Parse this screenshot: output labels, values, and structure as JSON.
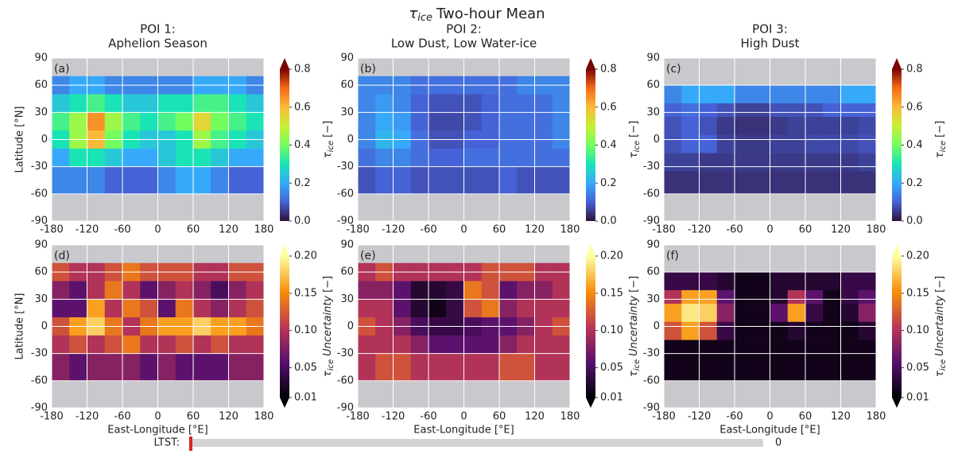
{
  "suptitle": {
    "symbol": "τ",
    "subscript": "ice",
    "text": "Two-hour Mean"
  },
  "slider": {
    "label": "LTST:",
    "value": 0
  },
  "chart_data": [
    {
      "type": "heatmap",
      "panel": "(a)",
      "title": [
        "POI 1:",
        "Aphelion Season"
      ],
      "ylabel": "Latitude [°N]",
      "colormap": "turbo",
      "cbar_label": {
        "symbol": "τ",
        "subscript": "ice",
        "text": "[−]"
      },
      "clim": [
        0,
        0.8
      ],
      "cticks": [
        {
          "value": 0,
          "label": "0.0"
        },
        0.2,
        0.4,
        0.6,
        0.8
      ],
      "extend": "max",
      "xlim": [
        -180,
        180
      ],
      "ylim": [
        -90,
        90
      ],
      "xticks": [
        -180,
        -120,
        -60,
        0,
        60,
        120,
        180
      ],
      "yticks": [
        -90,
        -60,
        -30,
        0,
        30,
        60,
        90
      ],
      "lon_edges": [
        -180,
        -150,
        -120,
        -90,
        -60,
        -30,
        0,
        30,
        60,
        90,
        120,
        150,
        180
      ],
      "lat_edges": [
        70,
        50,
        30,
        10,
        -10,
        -30,
        -60
      ],
      "z": [
        [
          0.15,
          0.2,
          0.2,
          0.15,
          0.15,
          0.15,
          0.15,
          0.15,
          0.2,
          0.2,
          0.2,
          0.15
        ],
        [
          0.25,
          0.3,
          0.35,
          0.3,
          0.25,
          0.25,
          0.3,
          0.3,
          0.35,
          0.35,
          0.3,
          0.25
        ],
        [
          0.35,
          0.45,
          0.65,
          0.45,
          0.35,
          0.3,
          0.35,
          0.4,
          0.55,
          0.4,
          0.35,
          0.3
        ],
        [
          0.3,
          0.45,
          0.6,
          0.4,
          0.3,
          0.25,
          0.25,
          0.3,
          0.45,
          0.35,
          0.3,
          0.25
        ],
        [
          0.2,
          0.3,
          0.3,
          0.25,
          0.2,
          0.2,
          0.25,
          0.3,
          0.3,
          0.25,
          0.2,
          0.2
        ],
        [
          0.15,
          0.15,
          0.15,
          0.1,
          0.1,
          0.1,
          0.15,
          0.2,
          0.2,
          0.15,
          0.1,
          0.1
        ]
      ]
    },
    {
      "type": "heatmap",
      "panel": "(b)",
      "title": [
        "POI 2:",
        "Low Dust, Low Water-ice"
      ],
      "colormap": "turbo",
      "cbar_label": {
        "symbol": "τ",
        "subscript": "ice",
        "text": "[−]"
      },
      "clim": [
        0,
        0.8
      ],
      "cticks": [
        {
          "value": 0,
          "label": "0.0"
        },
        0.2,
        0.4,
        0.6,
        0.8
      ],
      "extend": "max",
      "xlim": [
        -180,
        180
      ],
      "ylim": [
        -90,
        90
      ],
      "xticks": [
        -180,
        -120,
        -60,
        0,
        60,
        120,
        180
      ],
      "yticks": [
        -90,
        -60,
        -30,
        0,
        30,
        60,
        90
      ],
      "lon_edges": [
        -180,
        -150,
        -120,
        -90,
        -60,
        -30,
        0,
        30,
        60,
        90,
        120,
        150,
        180
      ],
      "lat_edges": [
        70,
        50,
        30,
        10,
        -10,
        -30,
        -60
      ],
      "z": [
        [
          0.15,
          0.15,
          0.15,
          0.12,
          0.12,
          0.12,
          0.12,
          0.12,
          0.12,
          0.15,
          0.15,
          0.15
        ],
        [
          0.15,
          0.18,
          0.15,
          0.1,
          0.08,
          0.08,
          0.08,
          0.1,
          0.12,
          0.12,
          0.12,
          0.15
        ],
        [
          0.15,
          0.2,
          0.18,
          0.1,
          0.07,
          0.07,
          0.08,
          0.1,
          0.12,
          0.12,
          0.12,
          0.15
        ],
        [
          0.15,
          0.22,
          0.2,
          0.12,
          0.08,
          0.08,
          0.1,
          0.1,
          0.12,
          0.12,
          0.12,
          0.15
        ],
        [
          0.12,
          0.15,
          0.15,
          0.12,
          0.1,
          0.1,
          0.12,
          0.12,
          0.12,
          0.12,
          0.12,
          0.12
        ],
        [
          0.08,
          0.1,
          0.1,
          0.08,
          0.08,
          0.08,
          0.08,
          0.08,
          0.1,
          0.08,
          0.08,
          0.08
        ]
      ]
    },
    {
      "type": "heatmap",
      "panel": "(c)",
      "title": [
        "POI 3:",
        "High Dust"
      ],
      "colormap": "turbo",
      "cbar_label": {
        "symbol": "τ",
        "subscript": "ice",
        "text": "[−]"
      },
      "clim": [
        0,
        0.8
      ],
      "cticks": [
        {
          "value": 0,
          "label": "0.0"
        },
        0.2,
        0.4,
        0.6,
        0.8
      ],
      "extend": "max",
      "xlim": [
        -180,
        180
      ],
      "ylim": [
        -90,
        90
      ],
      "xticks": [
        -180,
        -120,
        -60,
        0,
        60,
        120,
        180
      ],
      "yticks": [
        -90,
        -60,
        -30,
        0,
        30,
        60,
        90
      ],
      "lon_edges": [
        -180,
        -150,
        -120,
        -90,
        -60,
        -30,
        0,
        30,
        60,
        90,
        120,
        150,
        180
      ],
      "lat_edges": [
        60,
        40,
        25,
        5,
        -15,
        -35,
        -60
      ],
      "z": [
        [
          0.15,
          0.2,
          0.2,
          0.2,
          0.15,
          0.15,
          0.15,
          0.15,
          0.15,
          0.15,
          0.2,
          0.2
        ],
        [
          0.1,
          0.12,
          0.1,
          0.08,
          0.06,
          0.06,
          0.08,
          0.08,
          0.08,
          0.1,
          0.1,
          0.1
        ],
        [
          0.08,
          0.1,
          0.08,
          0.05,
          0.04,
          0.04,
          0.05,
          0.06,
          0.06,
          0.06,
          0.06,
          0.07
        ],
        [
          0.08,
          0.1,
          0.1,
          0.06,
          0.05,
          0.05,
          0.06,
          0.06,
          0.07,
          0.07,
          0.07,
          0.08
        ],
        [
          0.06,
          0.06,
          0.05,
          0.05,
          0.05,
          0.05,
          0.05,
          0.05,
          0.05,
          0.05,
          0.05,
          0.06
        ],
        [
          0.04,
          0.04,
          0.04,
          0.04,
          0.04,
          0.04,
          0.04,
          0.04,
          0.04,
          0.04,
          0.04,
          0.04
        ]
      ]
    },
    {
      "type": "heatmap",
      "panel": "(d)",
      "xlabel": "East-Longitude [°E]",
      "ylabel": "Latitude [°N]",
      "colormap": "inferno",
      "cbar_label": {
        "symbol": "τ",
        "subscript": "ice",
        "italic": "Uncertainty",
        "text": "[−]"
      },
      "clim": [
        0.01,
        0.2
      ],
      "cticks": [
        0.01,
        0.05,
        {
          "value": 0.1,
          "label": "0.10"
        },
        0.15,
        {
          "value": 0.2,
          "label": "0.20"
        }
      ],
      "extend": "both",
      "xlim": [
        -180,
        180
      ],
      "ylim": [
        -90,
        90
      ],
      "xticks": [
        -180,
        -120,
        -60,
        0,
        60,
        120,
        180
      ],
      "yticks": [
        -90,
        -60,
        -30,
        0,
        30,
        60,
        90
      ],
      "lon_edges": [
        -180,
        -150,
        -120,
        -90,
        -60,
        -30,
        0,
        30,
        60,
        90,
        120,
        150,
        180
      ],
      "lat_edges": [
        70,
        50,
        30,
        10,
        -10,
        -30,
        -60
      ],
      "z": [
        [
          0.12,
          0.1,
          0.1,
          0.12,
          0.14,
          0.12,
          0.12,
          0.12,
          0.1,
          0.1,
          0.12,
          0.12
        ],
        [
          0.08,
          0.06,
          0.1,
          0.14,
          0.1,
          0.06,
          0.08,
          0.1,
          0.08,
          0.05,
          0.08,
          0.1
        ],
        [
          0.06,
          0.06,
          0.16,
          0.1,
          0.14,
          0.12,
          0.06,
          0.14,
          0.1,
          0.08,
          0.1,
          0.12
        ],
        [
          0.12,
          0.16,
          0.18,
          0.14,
          0.1,
          0.14,
          0.16,
          0.16,
          0.18,
          0.16,
          0.16,
          0.14
        ],
        [
          0.1,
          0.12,
          0.1,
          0.12,
          0.14,
          0.1,
          0.1,
          0.12,
          0.1,
          0.12,
          0.1,
          0.1
        ],
        [
          0.08,
          0.06,
          0.08,
          0.08,
          0.08,
          0.06,
          0.08,
          0.06,
          0.06,
          0.06,
          0.08,
          0.08
        ]
      ]
    },
    {
      "type": "heatmap",
      "panel": "(e)",
      "xlabel": "East-Longitude [°E]",
      "colormap": "inferno",
      "cbar_label": {
        "symbol": "τ",
        "subscript": "ice",
        "italic": "Uncertainty",
        "text": "[−]"
      },
      "clim": [
        0.01,
        0.2
      ],
      "cticks": [
        0.01,
        0.05,
        {
          "value": 0.1,
          "label": "0.10"
        },
        0.15,
        {
          "value": 0.2,
          "label": "0.20"
        }
      ],
      "extend": "both",
      "xlim": [
        -180,
        180
      ],
      "ylim": [
        -90,
        90
      ],
      "xticks": [
        -180,
        -120,
        -60,
        0,
        60,
        120,
        180
      ],
      "yticks": [
        -90,
        -60,
        -30,
        0,
        30,
        60,
        90
      ],
      "lon_edges": [
        -180,
        -150,
        -120,
        -90,
        -60,
        -30,
        0,
        30,
        60,
        90,
        120,
        150,
        180
      ],
      "lat_edges": [
        70,
        50,
        30,
        10,
        -10,
        -30,
        -60
      ],
      "z": [
        [
          0.1,
          0.12,
          0.1,
          0.1,
          0.1,
          0.1,
          0.1,
          0.12,
          0.12,
          0.12,
          0.1,
          0.1
        ],
        [
          0.08,
          0.08,
          0.06,
          0.03,
          0.03,
          0.04,
          0.14,
          0.12,
          0.06,
          0.08,
          0.08,
          0.1
        ],
        [
          0.1,
          0.1,
          0.06,
          0.03,
          0.02,
          0.04,
          0.12,
          0.14,
          0.08,
          0.1,
          0.1,
          0.1
        ],
        [
          0.12,
          0.1,
          0.08,
          0.05,
          0.04,
          0.04,
          0.05,
          0.06,
          0.06,
          0.08,
          0.1,
          0.12
        ],
        [
          0.1,
          0.1,
          0.1,
          0.08,
          0.06,
          0.06,
          0.06,
          0.06,
          0.08,
          0.1,
          0.1,
          0.1
        ],
        [
          0.1,
          0.12,
          0.12,
          0.1,
          0.1,
          0.1,
          0.1,
          0.1,
          0.12,
          0.12,
          0.1,
          0.1
        ]
      ]
    },
    {
      "type": "heatmap",
      "panel": "(f)",
      "xlabel": "East-Longitude [°E]",
      "colormap": "inferno",
      "cbar_label": {
        "symbol": "τ",
        "subscript": "ice",
        "italic": "Uncertainty",
        "text": "[−]"
      },
      "clim": [
        0.01,
        0.2
      ],
      "cticks": [
        0.01,
        0.05,
        {
          "value": 0.1,
          "label": "0.10"
        },
        0.15,
        {
          "value": 0.2,
          "label": "0.20"
        }
      ],
      "extend": "both",
      "xlim": [
        -180,
        180
      ],
      "ylim": [
        -90,
        90
      ],
      "xticks": [
        -180,
        -120,
        -60,
        0,
        60,
        120,
        180
      ],
      "yticks": [
        -90,
        -60,
        -30,
        0,
        30,
        60,
        90
      ],
      "lon_edges": [
        -180,
        -150,
        -120,
        -90,
        -60,
        -30,
        0,
        30,
        60,
        90,
        120,
        150,
        180
      ],
      "lat_edges": [
        60,
        40,
        25,
        5,
        -15,
        -35,
        -60
      ],
      "z": [
        [
          0.04,
          0.04,
          0.04,
          0.03,
          0.02,
          0.02,
          0.03,
          0.03,
          0.03,
          0.03,
          0.04,
          0.04
        ],
        [
          0.1,
          0.16,
          0.16,
          0.06,
          0.02,
          0.02,
          0.03,
          0.1,
          0.06,
          0.02,
          0.04,
          0.06
        ],
        [
          0.16,
          0.19,
          0.18,
          0.08,
          0.02,
          0.02,
          0.06,
          0.16,
          0.04,
          0.02,
          0.03,
          0.08
        ],
        [
          0.12,
          0.16,
          0.12,
          0.04,
          0.02,
          0.02,
          0.02,
          0.03,
          0.02,
          0.02,
          0.02,
          0.03
        ],
        [
          0.02,
          0.02,
          0.02,
          0.02,
          0.02,
          0.02,
          0.02,
          0.02,
          0.02,
          0.02,
          0.02,
          0.02
        ],
        [
          0.02,
          0.02,
          0.02,
          0.02,
          0.02,
          0.02,
          0.02,
          0.02,
          0.02,
          0.02,
          0.02,
          0.02
        ]
      ]
    }
  ]
}
